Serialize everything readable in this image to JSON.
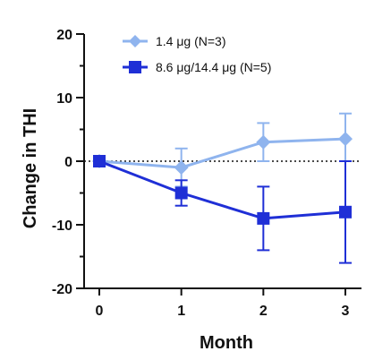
{
  "chart_data": {
    "type": "line",
    "x": [
      0,
      1,
      2,
      3
    ],
    "xlabel": "Month",
    "ylabel": "Change in THI",
    "xlim": [
      0,
      3
    ],
    "ylim": [
      -20,
      20
    ],
    "x_ticks": [
      "0",
      "1",
      "2",
      "3"
    ],
    "y_ticks": [
      "20",
      "10",
      "0",
      "-10",
      "-20"
    ],
    "reference_line_y": 0,
    "legend_position": "top",
    "series": [
      {
        "name": "1.4 μg (N=3)",
        "color": "#8fb4ee",
        "marker": "diamond",
        "values": [
          0,
          -1,
          3,
          3.5
        ],
        "err_low": [
          0,
          3,
          3,
          3.5
        ],
        "err_high": [
          0,
          3,
          3,
          4
        ]
      },
      {
        "name": "8.6 μg/14.4 μg (N=5)",
        "color": "#1f2fd6",
        "marker": "square",
        "values": [
          0,
          -5,
          -9,
          -8
        ],
        "err_low": [
          0,
          2,
          5,
          8
        ],
        "err_high": [
          0,
          2,
          5,
          8
        ]
      }
    ]
  }
}
